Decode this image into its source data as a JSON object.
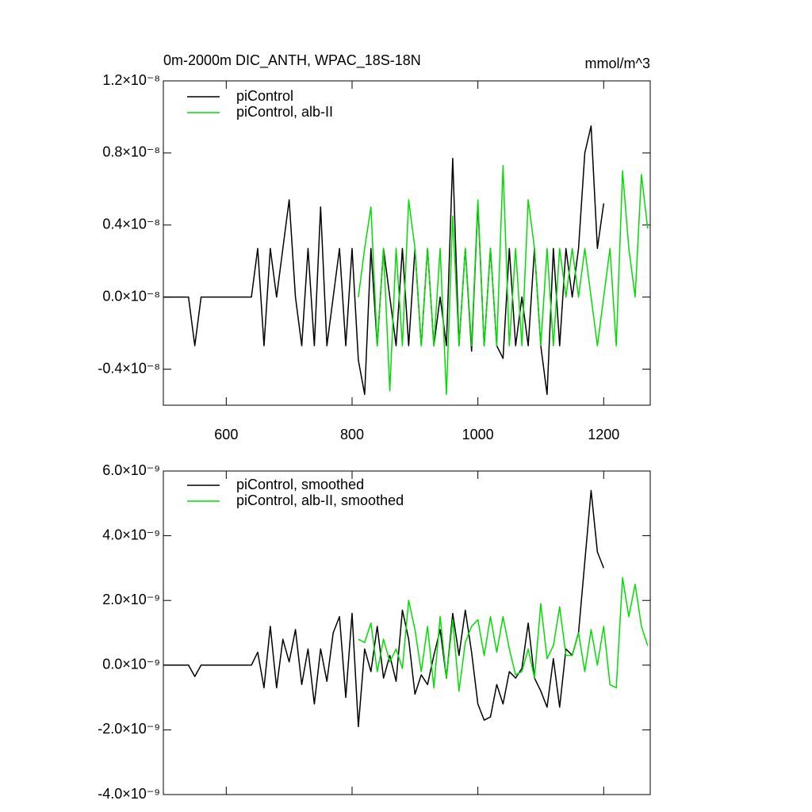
{
  "chart_data": [
    {
      "type": "line",
      "title": "0m-2000m DIC_ANTH, WPAC_18S-18N",
      "units": "mmol/m^3",
      "x": [
        500,
        510,
        520,
        530,
        540,
        550,
        560,
        570,
        580,
        590,
        600,
        610,
        620,
        630,
        640,
        650,
        660,
        670,
        680,
        690,
        700,
        710,
        720,
        730,
        740,
        750,
        760,
        770,
        780,
        790,
        800,
        810,
        820,
        830,
        840,
        850,
        860,
        870,
        880,
        890,
        900,
        910,
        920,
        930,
        940,
        950,
        960,
        970,
        980,
        990,
        1000,
        1010,
        1020,
        1030,
        1040,
        1050,
        1060,
        1070,
        1080,
        1090,
        1100,
        1110,
        1120,
        1130,
        1140,
        1150,
        1160,
        1170,
        1180,
        1190,
        1200,
        1210,
        1220,
        1230,
        1240,
        1250,
        1260,
        1270
      ],
      "series": [
        {
          "name": "piControl",
          "color": "#000000",
          "values": [
            0,
            0,
            0,
            0,
            0,
            -2.7e-09,
            0,
            0,
            0,
            0,
            0,
            0,
            0,
            0,
            0,
            2.7e-09,
            -2.7e-09,
            2.7e-09,
            0,
            2.7e-09,
            5.4e-09,
            0,
            -2.7e-09,
            2.7e-09,
            -2.7e-09,
            5e-09,
            -2.7e-09,
            0,
            2.7e-09,
            -2.7e-09,
            2.7e-09,
            -3.5e-09,
            -5.4e-09,
            2.7e-09,
            -2.7e-09,
            2.7e-09,
            0,
            -2.7e-09,
            2.7e-09,
            -2.7e-09,
            2.7e-09,
            -2.7e-09,
            2.7e-09,
            -2.7e-09,
            0,
            -2.7e-09,
            7.7e-09,
            -2.7e-09,
            2.7e-09,
            -3e-09,
            5.2e-09,
            -2.7e-09,
            2.7e-09,
            -2.7e-09,
            -3.4e-09,
            2.7e-09,
            -2.7e-09,
            0,
            -2.7e-09,
            2.7e-09,
            -2.7e-09,
            -5.4e-09,
            2.7e-09,
            -2.7e-09,
            2.7e-09,
            0,
            2.7e-09,
            8e-09,
            9.5e-09,
            2.7e-09,
            5.2e-09,
            null,
            null,
            null,
            null,
            null,
            null,
            null
          ]
        },
        {
          "name": "piControl, alb-II",
          "color": "#00dd00",
          "values": [
            null,
            null,
            null,
            null,
            null,
            null,
            null,
            null,
            null,
            null,
            null,
            null,
            null,
            null,
            null,
            null,
            null,
            null,
            null,
            null,
            null,
            null,
            null,
            null,
            null,
            null,
            null,
            null,
            null,
            null,
            null,
            0,
            2.7e-09,
            5e-09,
            -2.7e-09,
            2.7e-09,
            -5.2e-09,
            2.7e-09,
            -2.7e-09,
            5.4e-09,
            2.7e-09,
            -2.7e-09,
            2.7e-09,
            -2.7e-09,
            2.7e-09,
            -5.4e-09,
            4.5e-09,
            -2.7e-09,
            2.7e-09,
            -2.7e-09,
            5.4e-09,
            -2.7e-09,
            2.7e-09,
            -2.7e-09,
            7.3e-09,
            -2.7e-09,
            2.7e-09,
            -2.7e-09,
            5.4e-09,
            2.7e-09,
            -2.7e-09,
            2.7e-09,
            -2.7e-09,
            2.7e-09,
            0,
            2.7e-09,
            0,
            2.7e-09,
            0,
            -2.7e-09,
            0,
            2.7e-09,
            -2.7e-09,
            7e-09,
            2.7e-09,
            0,
            6.8e-09,
            3.8e-09
          ]
        }
      ],
      "xlim": [
        500,
        1274
      ],
      "xticks": [
        600,
        800,
        1000,
        1200
      ],
      "ylim": [
        -6e-09,
        1.2e-08
      ],
      "yticks": [
        {
          "value": 1.2e-08,
          "label": "1.2×10⁻⁸"
        },
        {
          "value": 8e-09,
          "label": "0.8×10⁻⁸"
        },
        {
          "value": 4e-09,
          "label": "0.4×10⁻⁸"
        },
        {
          "value": 0,
          "label": "0.0×10⁻⁸"
        },
        {
          "value": -4e-09,
          "label": "-0.4×10⁻⁸"
        }
      ]
    },
    {
      "type": "line",
      "x": [
        500,
        510,
        520,
        530,
        540,
        550,
        560,
        570,
        580,
        590,
        600,
        610,
        620,
        630,
        640,
        650,
        660,
        670,
        680,
        690,
        700,
        710,
        720,
        730,
        740,
        750,
        760,
        770,
        780,
        790,
        800,
        810,
        820,
        830,
        840,
        850,
        860,
        870,
        880,
        890,
        900,
        910,
        920,
        930,
        940,
        950,
        960,
        970,
        980,
        990,
        1000,
        1010,
        1020,
        1030,
        1040,
        1050,
        1060,
        1070,
        1080,
        1090,
        1100,
        1110,
        1120,
        1130,
        1140,
        1150,
        1160,
        1170,
        1180,
        1190,
        1200,
        1210,
        1220,
        1230,
        1240,
        1250,
        1260,
        1270
      ],
      "series": [
        {
          "name": "piControl, smoothed",
          "color": "#000000",
          "values": [
            0,
            0,
            0,
            0,
            0,
            -3.5e-10,
            0,
            0,
            0,
            0,
            0,
            0,
            0,
            0,
            0,
            4e-10,
            -7e-10,
            1.2e-09,
            -7e-10,
            8e-10,
            1e-10,
            1.1e-09,
            -6e-10,
            5e-10,
            -1.2e-09,
            5e-10,
            -5e-10,
            1e-09,
            1.5e-09,
            -1e-09,
            1.6e-09,
            -1.9e-09,
            5e-10,
            -2e-10,
            1.2e-09,
            -4e-10,
            3e-10,
            -5e-10,
            1.7e-09,
            8e-10,
            -9e-10,
            -3e-10,
            -6e-10,
            3e-10,
            1.1e-09,
            -4e-10,
            1.6e-09,
            3e-10,
            1.7e-09,
            4e-10,
            -1.2e-09,
            -1.7e-09,
            -1.6e-09,
            -6e-10,
            -1.2e-09,
            -2e-10,
            -4e-10,
            -1e-10,
            1.3e-09,
            -4e-10,
            -8e-10,
            -1.3e-09,
            2e-10,
            -1.3e-09,
            5e-10,
            3e-10,
            1e-09,
            3.2e-09,
            5.4e-09,
            3.5e-09,
            3e-09,
            null,
            null,
            null,
            null,
            null,
            null,
            null
          ]
        },
        {
          "name": "piControl, alb-II, smoothed",
          "color": "#00dd00",
          "values": [
            null,
            null,
            null,
            null,
            null,
            null,
            null,
            null,
            null,
            null,
            null,
            null,
            null,
            null,
            null,
            null,
            null,
            null,
            null,
            null,
            null,
            null,
            null,
            null,
            null,
            null,
            null,
            null,
            null,
            null,
            null,
            8e-10,
            7e-10,
            1.3e-09,
            -2e-10,
            8e-10,
            1e-10,
            5e-10,
            -1e-10,
            2e-09,
            1.1e-09,
            -2e-10,
            1.2e-09,
            -7e-10,
            1.5e-09,
            -4e-10,
            1.4e-09,
            -8e-10,
            7e-10,
            1.2e-09,
            1.4e-09,
            3e-10,
            1.5e-09,
            4e-10,
            1.5e-09,
            5e-10,
            -3e-10,
            -2e-10,
            5e-10,
            -4e-10,
            1.9e-09,
            2e-10,
            6e-10,
            1.8e-09,
            3e-10,
            3e-10,
            1e-09,
            -2e-10,
            1.1e-09,
            0,
            1.2e-09,
            -6e-10,
            -7e-10,
            2.7e-09,
            1.5e-09,
            2.5e-09,
            1.2e-09,
            6e-10
          ]
        }
      ],
      "xlim": [
        500,
        1274
      ],
      "xticks": [
        600,
        800,
        1000,
        1200
      ],
      "ylim": [
        -4e-09,
        6e-09
      ],
      "yticks": [
        {
          "value": 6e-09,
          "label": "6.0×10⁻⁹"
        },
        {
          "value": 4e-09,
          "label": "4.0×10⁻⁹"
        },
        {
          "value": 2e-09,
          "label": "2.0×10⁻⁹"
        },
        {
          "value": 0,
          "label": "0.0×10⁻⁹"
        },
        {
          "value": -2e-09,
          "label": "-2.0×10⁻⁹"
        },
        {
          "value": -4e-09,
          "label": "-4.0×10⁻⁹"
        }
      ]
    }
  ]
}
